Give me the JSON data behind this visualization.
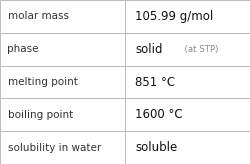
{
  "rows": [
    {
      "label": "molar mass",
      "value": "105.99 g/mol",
      "value_suffix": null
    },
    {
      "label": "phase",
      "value": "solid",
      "value_suffix": "  (at STP)"
    },
    {
      "label": "melting point",
      "value": "851 °C",
      "value_suffix": null
    },
    {
      "label": "boiling point",
      "value": "1600 °C",
      "value_suffix": null
    },
    {
      "label": "solubility in water",
      "value": "soluble",
      "value_suffix": null
    }
  ],
  "bg_color": "#ffffff",
  "border_color": "#bbbbbb",
  "label_color": "#333333",
  "value_color": "#111111",
  "suffix_color": "#888888",
  "label_fontsize": 7.5,
  "value_fontsize": 8.5,
  "suffix_fontsize": 6.2,
  "col_split": 0.5,
  "fig_width": 2.5,
  "fig_height": 1.64,
  "dpi": 100
}
